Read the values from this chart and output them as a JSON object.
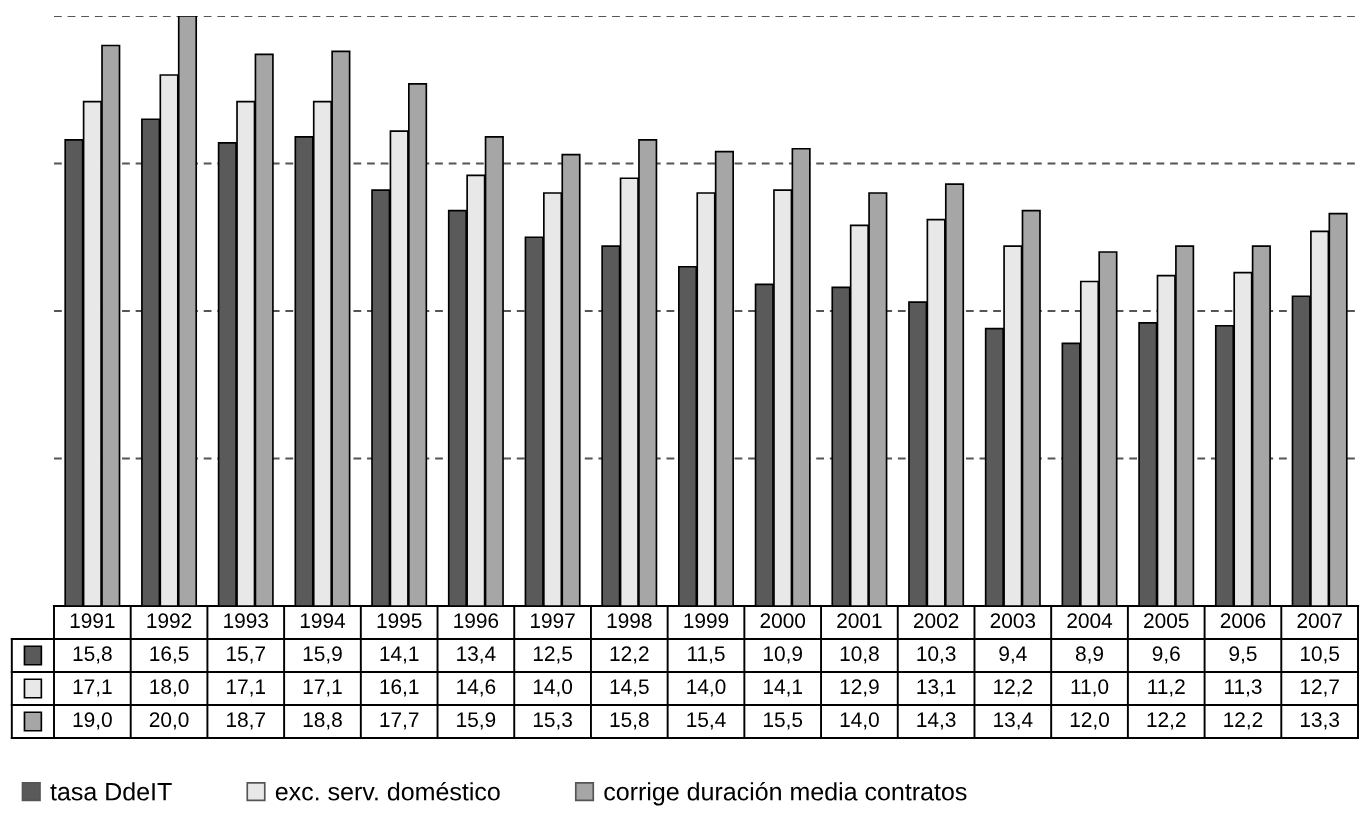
{
  "chart_data": {
    "type": "bar",
    "categories": [
      "1991",
      "1992",
      "1993",
      "1994",
      "1995",
      "1996",
      "1997",
      "1998",
      "1999",
      "2000",
      "2001",
      "2002",
      "2003",
      "2004",
      "2005",
      "2006",
      "2007"
    ],
    "series": [
      {
        "name": "tasa DdeIT",
        "color": "#5a5a5a",
        "values": [
          15.8,
          16.5,
          15.7,
          15.9,
          14.1,
          13.4,
          12.5,
          12.2,
          11.5,
          10.9,
          10.8,
          10.3,
          9.4,
          8.9,
          9.6,
          9.5,
          10.5
        ],
        "value_labels": [
          "15,8",
          "16,5",
          "15,7",
          "15,9",
          "14,1",
          "13,4",
          "12,5",
          "12,2",
          "11,5",
          "10,9",
          "10,8",
          "10,3",
          "9,4",
          "8,9",
          "9,6",
          "9,5",
          "10,5"
        ]
      },
      {
        "name": "exc. serv. doméstico",
        "color": "#e8e8e8",
        "values": [
          17.1,
          18.0,
          17.1,
          17.1,
          16.1,
          14.6,
          14.0,
          14.5,
          14.0,
          14.1,
          12.9,
          13.1,
          12.2,
          11.0,
          11.2,
          11.3,
          12.7
        ],
        "value_labels": [
          "17,1",
          "18,0",
          "17,1",
          "17,1",
          "16,1",
          "14,6",
          "14,0",
          "14,5",
          "14,0",
          "14,1",
          "12,9",
          "13,1",
          "12,2",
          "11,0",
          "11,2",
          "11,3",
          "12,7"
        ]
      },
      {
        "name": "corrige duración media contratos",
        "color": "#a6a6a6",
        "values": [
          19.0,
          20.0,
          18.7,
          18.8,
          17.7,
          15.9,
          15.3,
          15.8,
          15.4,
          15.5,
          14.0,
          14.3,
          13.4,
          12.0,
          12.2,
          12.2,
          13.3
        ],
        "value_labels": [
          "19,0",
          "20,0",
          "18,7",
          "18,8",
          "17,7",
          "15,9",
          "15,3",
          "15,8",
          "15,4",
          "15,5",
          "14,0",
          "14,3",
          "13,4",
          "12,0",
          "12,2",
          "12,2",
          "13,3"
        ]
      }
    ],
    "grid": "y",
    "legend": "bottom",
    "tick_labels": "x"
  }
}
